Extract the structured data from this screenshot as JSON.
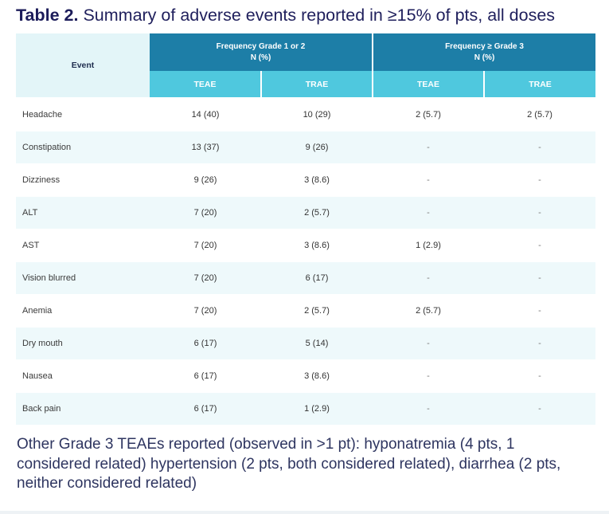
{
  "table_label": "Table 2.",
  "table_caption": "Summary of adverse events reported in ≥15% of pts, all doses",
  "header": {
    "event": "Event",
    "group1_line1": "Frequency Grade 1 or 2",
    "group1_line2": "N (%)",
    "group2_line1": "Frequency ≥ Grade 3",
    "group2_line2": "N (%)",
    "sub": [
      "TEAE",
      "TRAE",
      "TEAE",
      "TRAE"
    ]
  },
  "rows": [
    {
      "event": "Headache",
      "g12_teae": "14 (40)",
      "g12_trae": "10 (29)",
      "g3_teae": "2 (5.7)",
      "g3_trae": "2 (5.7)"
    },
    {
      "event": "Constipation",
      "g12_teae": "13 (37)",
      "g12_trae": "9 (26)",
      "g3_teae": "-",
      "g3_trae": "-"
    },
    {
      "event": "Dizziness",
      "g12_teae": "9 (26)",
      "g12_trae": "3 (8.6)",
      "g3_teae": "-",
      "g3_trae": "-"
    },
    {
      "event": "ALT",
      "g12_teae": "7 (20)",
      "g12_trae": "2 (5.7)",
      "g3_teae": "-",
      "g3_trae": "-"
    },
    {
      "event": "AST",
      "g12_teae": "7 (20)",
      "g12_trae": "3 (8.6)",
      "g3_teae": "1 (2.9)",
      "g3_trae": "-"
    },
    {
      "event": "Vision blurred",
      "g12_teae": "7 (20)",
      "g12_trae": "6 (17)",
      "g3_teae": "-",
      "g3_trae": "-"
    },
    {
      "event": "Anemia",
      "g12_teae": "7 (20)",
      "g12_trae": "2 (5.7)",
      "g3_teae": "2 (5.7)",
      "g3_trae": "-"
    },
    {
      "event": "Dry mouth",
      "g12_teae": "6 (17)",
      "g12_trae": "5 (14)",
      "g3_teae": "-",
      "g3_trae": "-"
    },
    {
      "event": "Nausea",
      "g12_teae": "6 (17)",
      "g12_trae": "3 (8.6)",
      "g3_teae": "-",
      "g3_trae": "-"
    },
    {
      "event": "Back pain",
      "g12_teae": "6 (17)",
      "g12_trae": "1 (2.9)",
      "g3_teae": "-",
      "g3_trae": "-"
    }
  ],
  "footnote": "Other Grade 3 TEAEs reported (observed in >1 pt): hyponatremia (4 pts, 1 considered related) hypertension (2 pts, both considered related), diarrhea (2 pts, neither considered related)",
  "colors": {
    "title": "#1c1c5a",
    "group_header": "#1d7ea7",
    "sub_header": "#4fc8de",
    "event_header_bg": "#e3f5f8",
    "stripe": "#eef9fb"
  }
}
